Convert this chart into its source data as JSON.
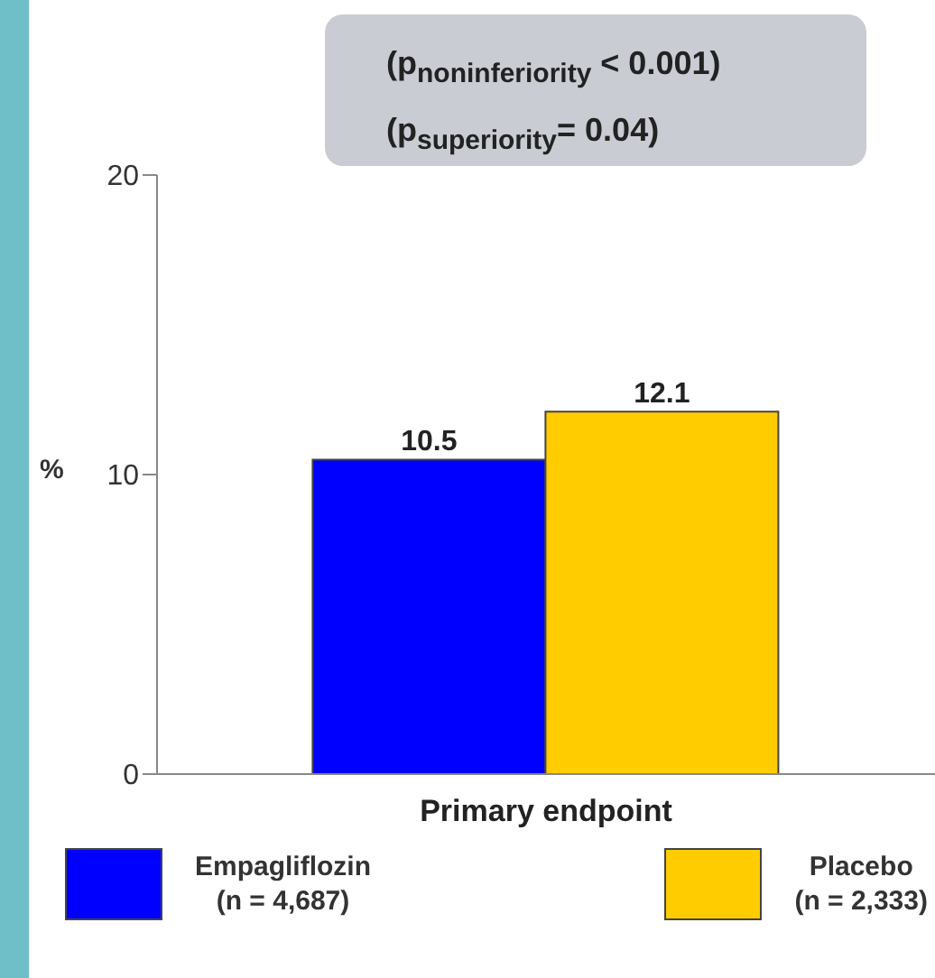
{
  "chart_data": {
    "type": "bar",
    "ylabel": "%",
    "categories": [
      "Primary endpoint"
    ],
    "series": [
      {
        "name": "Empagliflozin\n(n = 4,687)",
        "color": "#0000ff",
        "values": [
          10.5
        ]
      },
      {
        "name": "Placebo\n(n = 2,333)",
        "color": "#ffcc00",
        "values": [
          12.1
        ]
      }
    ],
    "ylim": [
      0,
      20
    ],
    "yticks": [
      0,
      10,
      20
    ],
    "grid": false,
    "legend": "bottom",
    "data_labels": true,
    "annotations": [
      "(p$_{noninferiority}$ < 0.001)",
      "(p$_{superiority}$= 0.04)"
    ]
  }
}
